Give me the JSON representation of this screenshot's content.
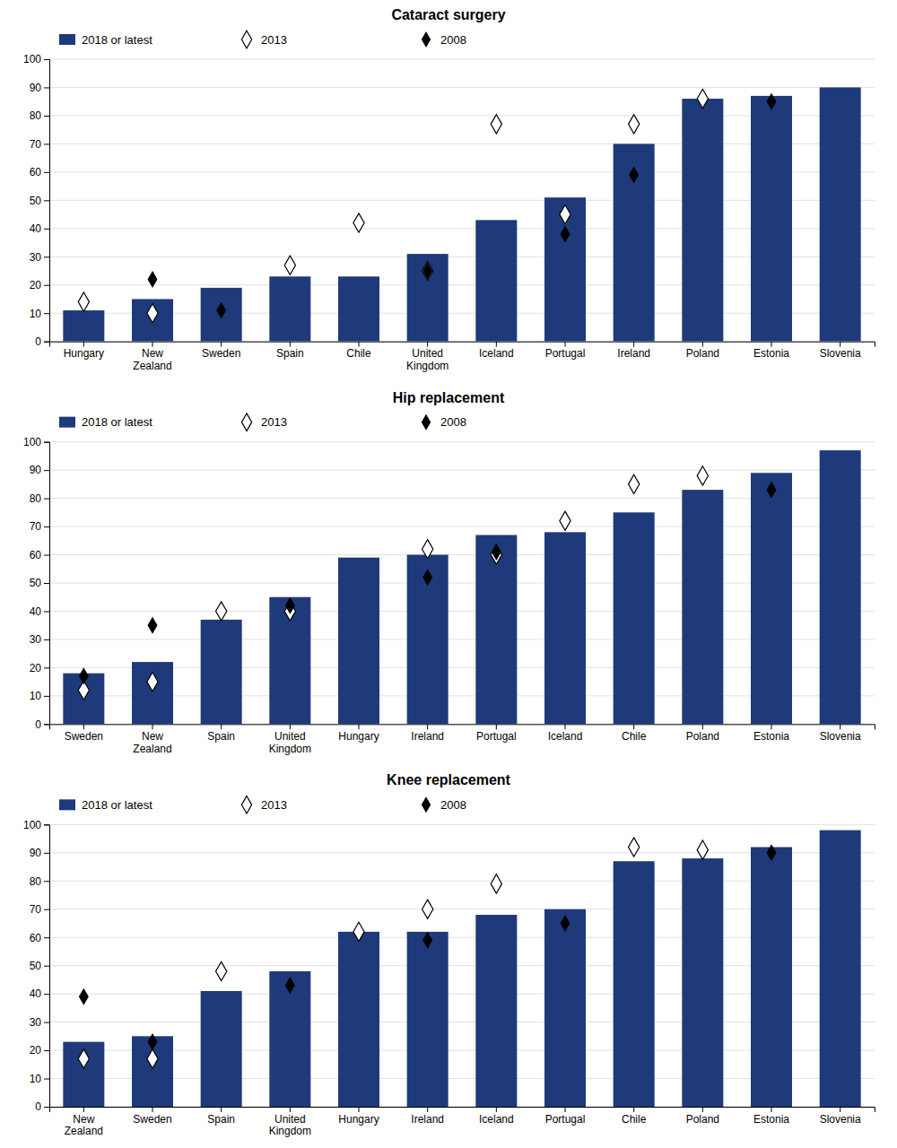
{
  "chart_data": [
    {
      "type": "bar",
      "title": "Cataract surgery",
      "categories": [
        "Hungary",
        "New\nZealand",
        "Sweden",
        "Spain",
        "Chile",
        "United\nKingdom",
        "Iceland",
        "Portugal",
        "Ireland",
        "Poland",
        "Estonia",
        "Slovenia"
      ],
      "series": [
        {
          "name": "2018 or latest",
          "type": "bar",
          "color": "#1f3a7a",
          "values": [
            11,
            15,
            19,
            23,
            23,
            31,
            43,
            51,
            70,
            86,
            87,
            90
          ]
        },
        {
          "name": "2013",
          "type": "scatter",
          "marker": "diamond",
          "color": "#ffffff",
          "values": [
            14,
            10,
            null,
            27,
            42,
            25,
            77,
            45,
            77,
            86,
            null,
            null
          ]
        },
        {
          "name": "2008",
          "type": "scatter",
          "marker": "diamond",
          "color": "#000000",
          "values": [
            null,
            22,
            11,
            null,
            null,
            25,
            null,
            38,
            59,
            null,
            85,
            null
          ]
        }
      ],
      "ylim": [
        0,
        100
      ],
      "yticks": [
        0,
        10,
        20,
        30,
        40,
        50,
        60,
        70,
        80,
        90,
        100
      ],
      "grid": true,
      "legend": "top"
    },
    {
      "type": "bar",
      "title": "Hip replacement",
      "categories": [
        "Sweden",
        "New\nZealand",
        "Spain",
        "United\nKingdom",
        "Hungary",
        "Ireland",
        "Portugal",
        "Iceland",
        "Chile",
        "Poland",
        "Estonia",
        "Slovenia"
      ],
      "series": [
        {
          "name": "2018 or latest",
          "type": "bar",
          "color": "#1f3a7a",
          "values": [
            18,
            22,
            37,
            45,
            59,
            60,
            67,
            68,
            75,
            83,
            89,
            97
          ]
        },
        {
          "name": "2013",
          "type": "scatter",
          "marker": "diamond",
          "color": "#ffffff",
          "values": [
            12,
            15,
            40,
            40,
            null,
            62,
            60,
            72,
            85,
            88,
            null,
            null
          ]
        },
        {
          "name": "2008",
          "type": "scatter",
          "marker": "diamond",
          "color": "#000000",
          "values": [
            17,
            35,
            null,
            42,
            null,
            52,
            61,
            null,
            null,
            null,
            83,
            null
          ]
        }
      ],
      "ylim": [
        0,
        100
      ],
      "yticks": [
        0,
        10,
        20,
        30,
        40,
        50,
        60,
        70,
        80,
        90,
        100
      ],
      "grid": true,
      "legend": "top"
    },
    {
      "type": "bar",
      "title": "Knee replacement",
      "categories": [
        "New\nZealand",
        "Sweden",
        "Spain",
        "United\nKingdom",
        "Hungary",
        "Ireland",
        "Iceland",
        "Portugal",
        "Chile",
        "Poland",
        "Estonia",
        "Slovenia"
      ],
      "series": [
        {
          "name": "2018 or latest",
          "type": "bar",
          "color": "#1f3a7a",
          "values": [
            23,
            25,
            41,
            48,
            62,
            62,
            68,
            70,
            87,
            88,
            92,
            98
          ]
        },
        {
          "name": "2013",
          "type": "scatter",
          "marker": "diamond",
          "color": "#ffffff",
          "values": [
            17,
            17,
            48,
            null,
            62,
            70,
            79,
            null,
            92,
            91,
            null,
            null
          ]
        },
        {
          "name": "2008",
          "type": "scatter",
          "marker": "diamond",
          "color": "#000000",
          "values": [
            39,
            23,
            null,
            43,
            null,
            59,
            null,
            65,
            null,
            null,
            90,
            null
          ]
        }
      ],
      "ylim": [
        0,
        100
      ],
      "yticks": [
        0,
        10,
        20,
        30,
        40,
        50,
        60,
        70,
        80,
        90,
        100
      ],
      "grid": true,
      "legend": "top"
    }
  ]
}
